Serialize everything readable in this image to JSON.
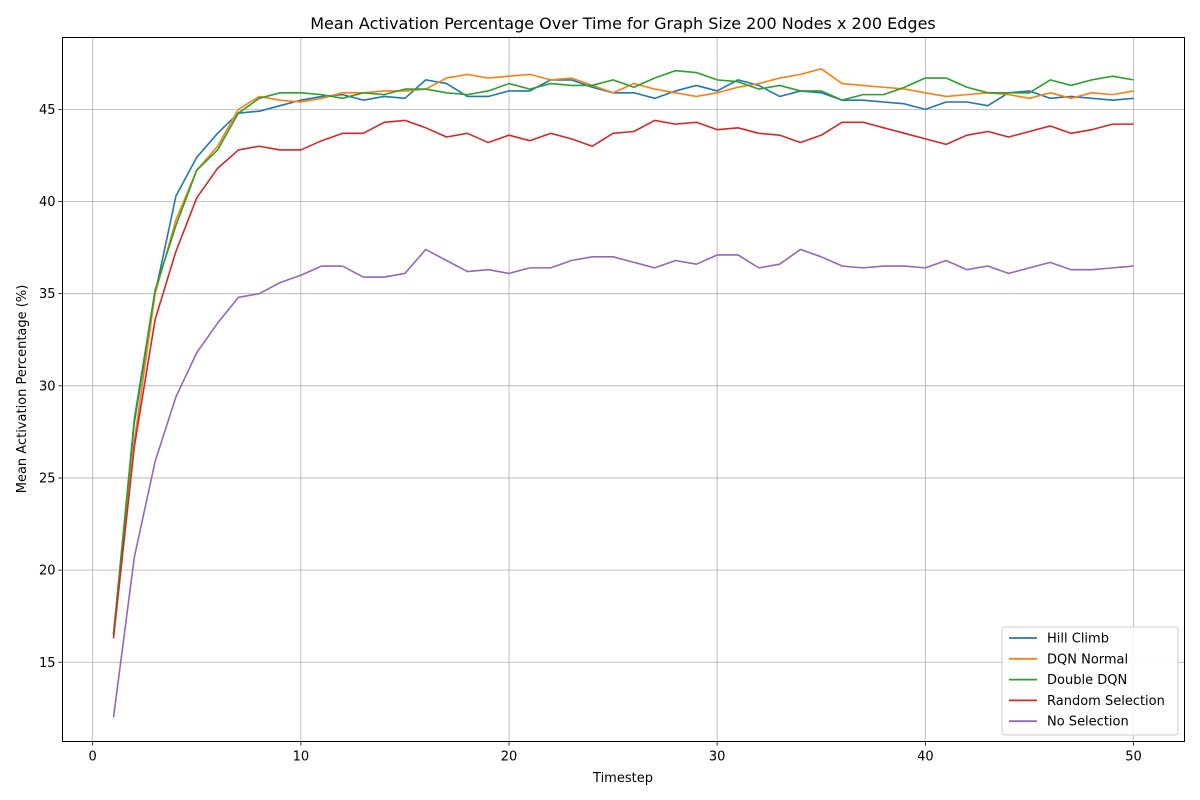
{
  "chart_data": {
    "type": "line",
    "title": "Mean Activation Percentage Over Time for Graph Size 200 Nodes x 200 Edges",
    "xlabel": "Timestep",
    "ylabel": "Mean Activation Percentage (%)",
    "xlim": [
      -1.45,
      52.45
    ],
    "ylim": [
      10.7,
      48.9
    ],
    "xticks": [
      0,
      10,
      20,
      30,
      40,
      50
    ],
    "yticks": [
      15,
      20,
      25,
      30,
      35,
      40,
      45
    ],
    "grid": true,
    "legend_position": "bottom-right",
    "x": [
      1,
      2,
      3,
      4,
      5,
      6,
      7,
      8,
      9,
      10,
      11,
      12,
      13,
      14,
      15,
      16,
      17,
      18,
      19,
      20,
      21,
      22,
      23,
      24,
      25,
      26,
      27,
      28,
      29,
      30,
      31,
      32,
      33,
      34,
      35,
      36,
      37,
      38,
      39,
      40,
      41,
      42,
      43,
      44,
      45,
      46,
      47,
      48,
      49,
      50
    ],
    "series": [
      {
        "name": "Hill Climb",
        "color": "#1f77b4",
        "values": [
          16.5,
          28.0,
          35.0,
          40.3,
          42.4,
          43.7,
          44.8,
          44.9,
          45.2,
          45.5,
          45.7,
          45.8,
          45.5,
          45.7,
          45.6,
          46.6,
          46.4,
          45.7,
          45.7,
          46.0,
          46.0,
          46.6,
          46.6,
          46.2,
          45.9,
          45.9,
          45.6,
          46.0,
          46.3,
          46.0,
          46.6,
          46.3,
          45.7,
          46.0,
          45.9,
          45.5,
          45.5,
          45.4,
          45.3,
          45.0,
          45.4,
          45.4,
          45.2,
          45.9,
          46.0,
          45.6,
          45.7,
          45.6,
          45.5,
          45.6
        ]
      },
      {
        "name": "DQN Normal",
        "color": "#ff7f0e",
        "values": [
          16.5,
          27.0,
          35.0,
          39.0,
          41.7,
          43.0,
          45.0,
          45.7,
          45.5,
          45.4,
          45.6,
          45.9,
          45.9,
          46.0,
          46.0,
          46.1,
          46.7,
          46.9,
          46.7,
          46.8,
          46.9,
          46.6,
          46.7,
          46.3,
          45.9,
          46.4,
          46.1,
          45.9,
          45.7,
          45.9,
          46.2,
          46.4,
          46.7,
          46.9,
          47.2,
          46.4,
          46.3,
          46.2,
          46.1,
          45.9,
          45.7,
          45.8,
          45.9,
          45.8,
          45.6,
          45.9,
          45.6,
          45.9,
          45.8,
          46.0
        ]
      },
      {
        "name": "Double DQN",
        "color": "#2ca02c",
        "values": [
          16.5,
          28.2,
          35.2,
          38.7,
          41.7,
          42.8,
          44.8,
          45.6,
          45.9,
          45.9,
          45.8,
          45.6,
          45.9,
          45.8,
          46.1,
          46.1,
          45.9,
          45.8,
          46.0,
          46.4,
          46.1,
          46.4,
          46.3,
          46.3,
          46.6,
          46.2,
          46.7,
          47.1,
          47.0,
          46.6,
          46.5,
          46.1,
          46.3,
          46.0,
          46.0,
          45.5,
          45.8,
          45.8,
          46.2,
          46.7,
          46.7,
          46.2,
          45.9,
          45.9,
          45.9,
          46.6,
          46.3,
          46.6,
          46.8,
          46.6
        ]
      },
      {
        "name": "Random Selection",
        "color": "#d62728",
        "values": [
          16.3,
          26.7,
          33.6,
          37.3,
          40.2,
          41.8,
          42.8,
          43.0,
          42.8,
          42.8,
          43.3,
          43.7,
          43.7,
          44.3,
          44.4,
          44.0,
          43.5,
          43.7,
          43.2,
          43.6,
          43.3,
          43.7,
          43.4,
          43.0,
          43.7,
          43.8,
          44.4,
          44.2,
          44.3,
          43.9,
          44.0,
          43.7,
          43.6,
          43.2,
          43.6,
          44.3,
          44.3,
          44.0,
          43.7,
          43.4,
          43.1,
          43.6,
          43.8,
          43.5,
          43.8,
          44.1,
          43.7,
          43.9,
          44.2,
          44.2
        ]
      },
      {
        "name": "No Selection",
        "color": "#9467bd",
        "values": [
          12.0,
          20.7,
          25.9,
          29.4,
          31.8,
          33.4,
          34.8,
          35.0,
          35.6,
          36.0,
          36.5,
          36.5,
          35.9,
          35.9,
          36.1,
          37.4,
          36.8,
          36.2,
          36.3,
          36.1,
          36.4,
          36.4,
          36.8,
          37.0,
          37.0,
          36.7,
          36.4,
          36.8,
          36.6,
          37.1,
          37.1,
          36.4,
          36.6,
          37.4,
          37.0,
          36.5,
          36.4,
          36.5,
          36.5,
          36.4,
          36.8,
          36.3,
          36.5,
          36.1,
          36.4,
          36.7,
          36.3,
          36.3,
          36.4,
          36.5
        ]
      }
    ]
  }
}
